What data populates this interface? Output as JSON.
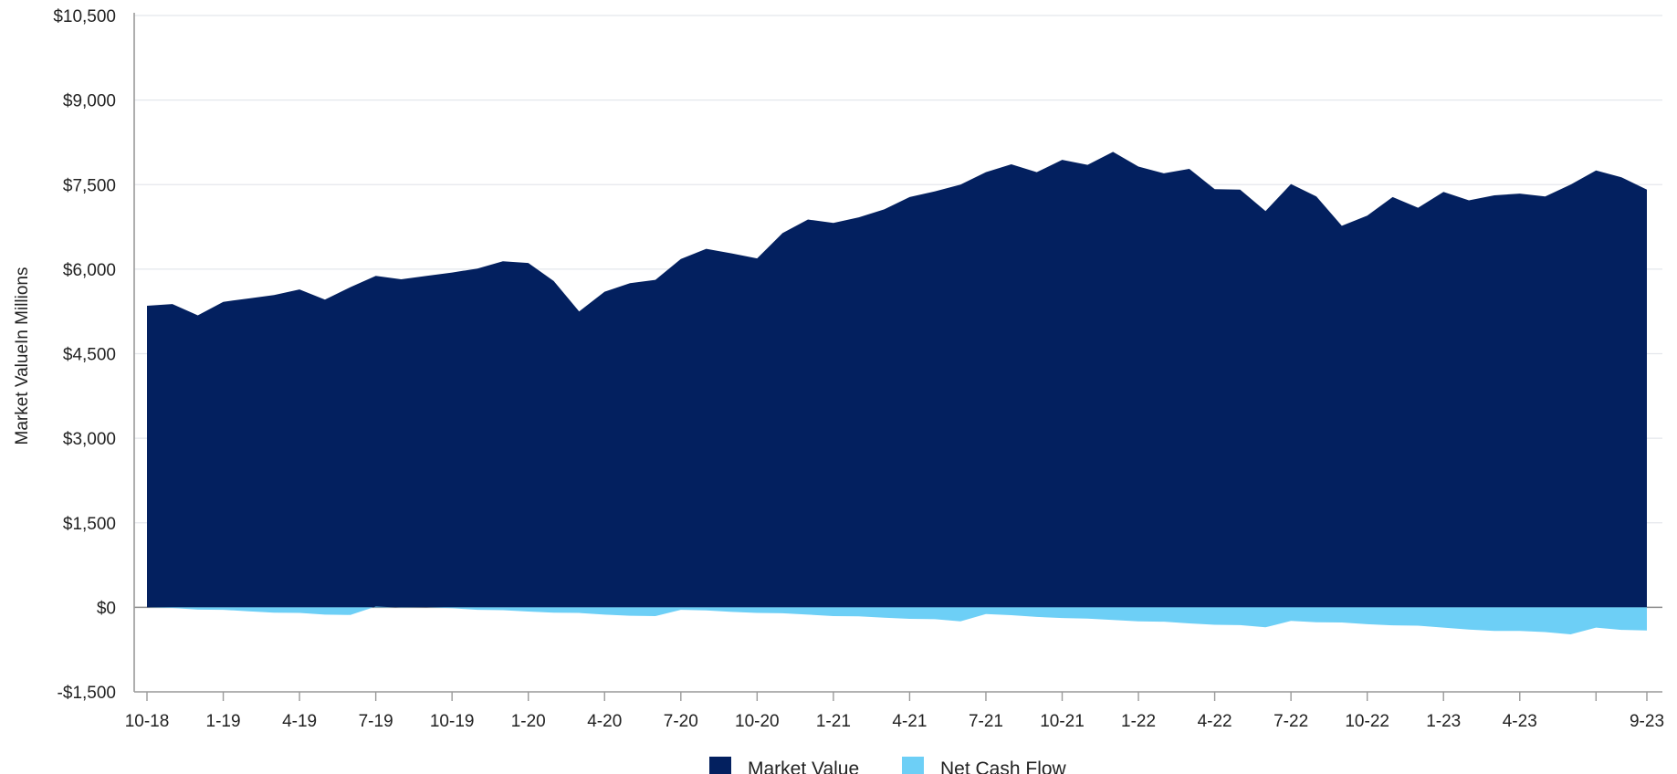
{
  "chart_data": {
    "type": "area",
    "ylabel": "Market ValueIn Millions",
    "ylim": [
      -1500,
      10500
    ],
    "yticks": [
      -1500,
      0,
      1500,
      3000,
      4500,
      6000,
      7500,
      9000,
      10500
    ],
    "ytick_labels": [
      "-$1,500",
      "$0",
      "$1,500",
      "$3,000",
      "$4,500",
      "$6,000",
      "$7,500",
      "$9,000",
      "$10,500"
    ],
    "x_start": "10-18",
    "x_tick_labels": [
      "10-18",
      "1-19",
      "4-19",
      "7-19",
      "10-19",
      "1-20",
      "4-20",
      "7-20",
      "10-20",
      "1-21",
      "4-21",
      "7-21",
      "10-21",
      "1-22",
      "4-22",
      "7-22",
      "10-22",
      "1-23",
      "4-23",
      "9-23"
    ],
    "x_tick_positions": [
      0,
      3,
      6,
      9,
      12,
      15,
      18,
      21,
      24,
      27,
      30,
      33,
      36,
      39,
      42,
      45,
      48,
      51,
      54,
      59
    ],
    "grid": true,
    "legend_position": "bottom-center",
    "series": [
      {
        "name": "Market Value",
        "color": "#03205f",
        "values": [
          5350,
          5380,
          5180,
          5420,
          5480,
          5540,
          5640,
          5460,
          5680,
          5880,
          5820,
          5880,
          5940,
          6010,
          6140,
          6110,
          5790,
          5250,
          5600,
          5750,
          5810,
          6180,
          6360,
          6280,
          6190,
          6640,
          6880,
          6820,
          6920,
          7060,
          7280,
          7380,
          7500,
          7720,
          7860,
          7720,
          7940,
          7850,
          8080,
          7820,
          7700,
          7780,
          7420,
          7410,
          7030,
          7510,
          7290,
          6770,
          6950,
          7280,
          7090,
          7370,
          7220,
          7310,
          7340,
          7290,
          7500,
          7750,
          7630,
          7410
        ]
      },
      {
        "name": "Net Cash Flow",
        "color": "#6dcff6",
        "values": [
          0,
          -10,
          -40,
          -45,
          -70,
          -95,
          -100,
          -130,
          -135,
          15,
          -5,
          0,
          -15,
          -45,
          -50,
          -75,
          -95,
          -100,
          -130,
          -150,
          -155,
          -45,
          -55,
          -80,
          -100,
          -105,
          -130,
          -155,
          -160,
          -185,
          -205,
          -210,
          -250,
          -120,
          -140,
          -170,
          -190,
          -200,
          -225,
          -250,
          -255,
          -285,
          -310,
          -315,
          -355,
          -240,
          -265,
          -270,
          -300,
          -320,
          -325,
          -360,
          -395,
          -420,
          -420,
          -440,
          -480,
          -360,
          -400,
          -410
        ]
      }
    ]
  }
}
